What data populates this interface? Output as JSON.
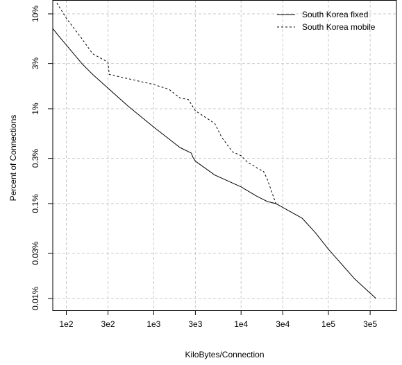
{
  "chart_data": {
    "type": "line",
    "xlabel": "KiloBytes/Connection",
    "ylabel": "Percent of Connections",
    "x_scale": "log",
    "y_scale": "log",
    "xlim": [
      70,
      600000
    ],
    "ylim": [
      0.0075,
      14
    ],
    "grid": true,
    "legend_position": "top-right",
    "x_ticks": [
      {
        "value": 100,
        "label": "1e2"
      },
      {
        "value": 300,
        "label": "3e2"
      },
      {
        "value": 1000,
        "label": "1e3"
      },
      {
        "value": 3000,
        "label": "3e3"
      },
      {
        "value": 10000,
        "label": "1e4"
      },
      {
        "value": 30000,
        "label": "3e4"
      },
      {
        "value": 100000,
        "label": "1e5"
      },
      {
        "value": 300000,
        "label": "3e5"
      }
    ],
    "y_ticks": [
      {
        "value": 0.01,
        "label": "0.01%"
      },
      {
        "value": 0.03,
        "label": "0.03%"
      },
      {
        "value": 0.1,
        "label": "0.1%"
      },
      {
        "value": 0.3,
        "label": "0.3%"
      },
      {
        "value": 1,
        "label": "1%"
      },
      {
        "value": 3,
        "label": "3%"
      },
      {
        "value": 10,
        "label": "10%"
      }
    ],
    "series": [
      {
        "name": "South Korea fixed",
        "line_style": "solid",
        "x": [
          70,
          80,
          100,
          150,
          200,
          300,
          500,
          1000,
          2000,
          2700,
          2800,
          3000,
          5000,
          10000,
          15000,
          20000,
          25000,
          50000,
          70000,
          100000,
          200000,
          350000
        ],
        "y": [
          7,
          6,
          4.7,
          3,
          2.3,
          1.65,
          1.08,
          0.64,
          0.39,
          0.34,
          0.31,
          0.28,
          0.2,
          0.15,
          0.12,
          0.105,
          0.1,
          0.07,
          0.05,
          0.033,
          0.016,
          0.01
        ]
      },
      {
        "name": "South Korea mobile",
        "line_style": "dashed",
        "x": [
          78,
          100,
          150,
          200,
          300,
          310,
          1000,
          1500,
          2000,
          2500,
          3000,
          5000,
          6000,
          8000,
          10000,
          12000,
          14000,
          16000,
          18000,
          20000,
          25000
        ],
        "y": [
          13,
          9,
          5.5,
          3.8,
          3.1,
          2.3,
          1.8,
          1.6,
          1.3,
          1.25,
          0.95,
          0.7,
          0.5,
          0.35,
          0.32,
          0.27,
          0.25,
          0.23,
          0.22,
          0.18,
          0.1
        ]
      }
    ]
  }
}
